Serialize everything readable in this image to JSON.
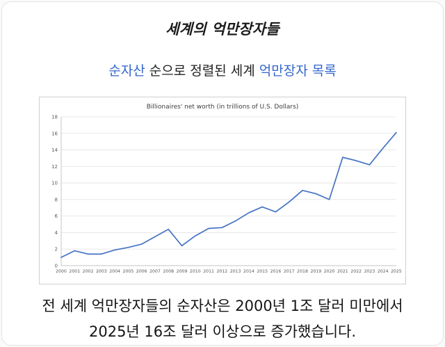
{
  "page": {
    "title": "세계의 억만장자들",
    "subtitle": {
      "link_networth": "순자산",
      "middle_text": " 순으로 정렬된 세계 ",
      "link_billionaire_list": "억만장자 목록"
    },
    "caption_line1": "전 세계 억만장자들의 순자산은 2000년 1조 달러 미만에서",
    "caption_line2": "2025년 16조 달러 이상으로 증가했습니다."
  },
  "colors": {
    "link_blue": "#3366cc",
    "line_blue": "#4472c4",
    "grid": "#e8e8e8",
    "axis_line": "#c6c6c6",
    "axis_text": "#595959"
  },
  "chart_data": {
    "type": "line",
    "title": "Billionaires' net worth (in trillions of U.S. Dollars)",
    "x": [
      "2000",
      "2001",
      "2002",
      "2003",
      "2004",
      "2005",
      "2006",
      "2007",
      "2008",
      "2009",
      "2010",
      "2011",
      "2012",
      "2013",
      "2014",
      "2015",
      "2016",
      "2017",
      "2018",
      "2019",
      "2020",
      "2021",
      "2022",
      "2023",
      "2024",
      "2025"
    ],
    "values": [
      1.0,
      1.8,
      1.4,
      1.4,
      1.9,
      2.2,
      2.6,
      3.5,
      4.4,
      2.4,
      3.6,
      4.5,
      4.6,
      5.4,
      6.4,
      7.1,
      6.5,
      7.7,
      9.1,
      8.7,
      8.0,
      13.1,
      12.7,
      12.2,
      14.2,
      16.1
    ],
    "xlabel": "",
    "ylabel": "",
    "ylim": [
      0,
      18
    ],
    "ytick_step": 2,
    "grid": true,
    "legend": "none"
  }
}
